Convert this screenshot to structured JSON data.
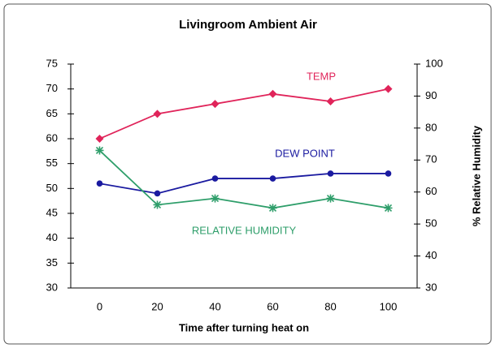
{
  "chart_data": {
    "type": "line",
    "title": "Livingroom Ambient Air",
    "xlabel": "Time after turning heat on",
    "y2label": "% Relative Humidity",
    "categories": [
      "0",
      "20",
      "40",
      "60",
      "80",
      "100"
    ],
    "ylim": [
      30,
      75
    ],
    "yticks": [
      30,
      35,
      40,
      45,
      50,
      55,
      60,
      65,
      70,
      75
    ],
    "y2lim": [
      30,
      100
    ],
    "y2ticks": [
      30,
      40,
      50,
      60,
      70,
      80,
      90,
      100
    ],
    "series": [
      {
        "name": "TEMP",
        "color": "#e0245a",
        "marker": "diamond",
        "values": [
          60,
          65,
          67,
          69,
          67.5,
          70
        ]
      },
      {
        "name": "DEW POINT",
        "color": "#1a1aa0",
        "marker": "circle",
        "values": [
          51,
          49,
          52,
          52,
          53,
          53
        ]
      },
      {
        "name": "RELATIVE HUMIDITY",
        "color": "#2e9e6a",
        "marker": "asterisk",
        "axis": "y2",
        "values": [
          73,
          56,
          58,
          55,
          58,
          55
        ]
      }
    ]
  }
}
